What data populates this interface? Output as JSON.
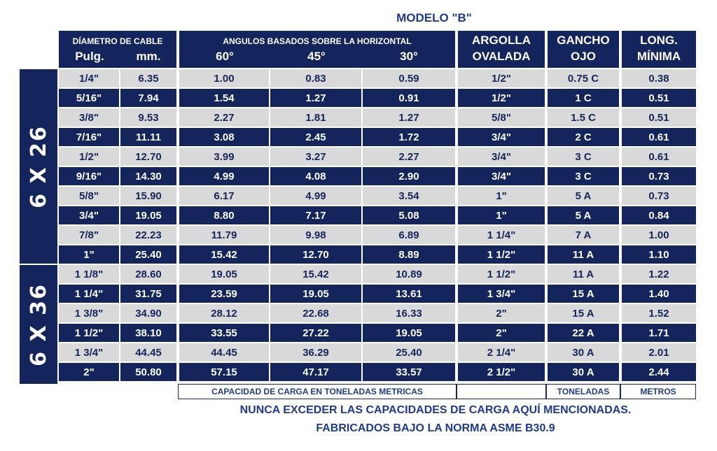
{
  "title": "MODELO \"B\"",
  "header": {
    "diametro": "DÍAMETRO DE CABLE",
    "pulg": "Pulg.",
    "mm": "mm.",
    "angulos": "ANGULOS BASADOS SOBRE LA HORIZONTAL",
    "a60": "60°",
    "a45": "45°",
    "a30": "30°",
    "argolla1": "ARGOLLA",
    "argolla2": "OVALADA",
    "gancho1": "GANCHO",
    "gancho2": "OJO",
    "long1": "LONG.",
    "long2": "MÍNIMA"
  },
  "groups": [
    {
      "label": "6 X 26",
      "rows": 10
    },
    {
      "label": "6 X 36",
      "rows": 6
    }
  ],
  "rows": [
    [
      "1/4\"",
      "6.35",
      "1.00",
      "0.83",
      "0.59",
      "1/2\"",
      "0.75 C",
      "0.38"
    ],
    [
      "5/16\"",
      "7.94",
      "1.54",
      "1.27",
      "0.91",
      "1/2\"",
      "1 C",
      "0.51"
    ],
    [
      "3/8\"",
      "9.53",
      "2.27",
      "1.81",
      "1.27",
      "5/8\"",
      "1.5 C",
      "0.51"
    ],
    [
      "7/16\"",
      "11.11",
      "3.08",
      "2.45",
      "1.72",
      "3/4\"",
      "2 C",
      "0.61"
    ],
    [
      "1/2\"",
      "12.70",
      "3.99",
      "3.27",
      "2.27",
      "3/4\"",
      "3 C",
      "0.61"
    ],
    [
      "9/16\"",
      "14.30",
      "4.99",
      "4.08",
      "2.90",
      "3/4\"",
      "3 C",
      "0.73"
    ],
    [
      "5/8\"",
      "15.90",
      "6.17",
      "4.99",
      "3.54",
      "1\"",
      "5 A",
      "0.73"
    ],
    [
      "3/4\"",
      "19.05",
      "8.80",
      "7.17",
      "5.08",
      "1\"",
      "5 A",
      "0.84"
    ],
    [
      "7/8\"",
      "22.23",
      "11.79",
      "9.98",
      "6.89",
      "1 1/4\"",
      "7 A",
      "1.00"
    ],
    [
      "1\"",
      "25.40",
      "15.42",
      "12.70",
      "8.89",
      "1 1/2\"",
      "11 A",
      "1.10"
    ],
    [
      "1 1/8\"",
      "28.60",
      "19.05",
      "15.42",
      "10.89",
      "1 1/2\"",
      "11 A",
      "1.22"
    ],
    [
      "1 1/4\"",
      "31.75",
      "23.59",
      "19.05",
      "13.61",
      "1 3/4\"",
      "15 A",
      "1.40"
    ],
    [
      "1 3/8\"",
      "34.90",
      "28.12",
      "22.68",
      "16.33",
      "2\"",
      "15 A",
      "1.52"
    ],
    [
      "1 1/2\"",
      "38.10",
      "33.55",
      "27.22",
      "19.05",
      "2\"",
      "22 A",
      "1.71"
    ],
    [
      "1 3/4\"",
      "44.45",
      "44.45",
      "36.29",
      "25.40",
      "2 1/4\"",
      "30 A",
      "2.01"
    ],
    [
      "2\"",
      "50.80",
      "57.15",
      "47.17",
      "33.57",
      "2 1/2\"",
      "30 A",
      "2.44"
    ]
  ],
  "footer": {
    "capacidad": "CAPACIDAD DE CARGA EN TONELADAS METRICAS",
    "toneladas": "TONELADAS",
    "metros": "METROS"
  },
  "notes": {
    "line1": "NUNCA EXCEDER LAS CAPACIDADES DE CARGA AQUÍ MENCIONADAS.",
    "line2": "FABRICADOS BAJO LA NORMA ASME B30.9"
  },
  "colors": {
    "navy": "#14245c",
    "gray": "#d9d9d9",
    "text_blue": "#1f3a8a"
  }
}
